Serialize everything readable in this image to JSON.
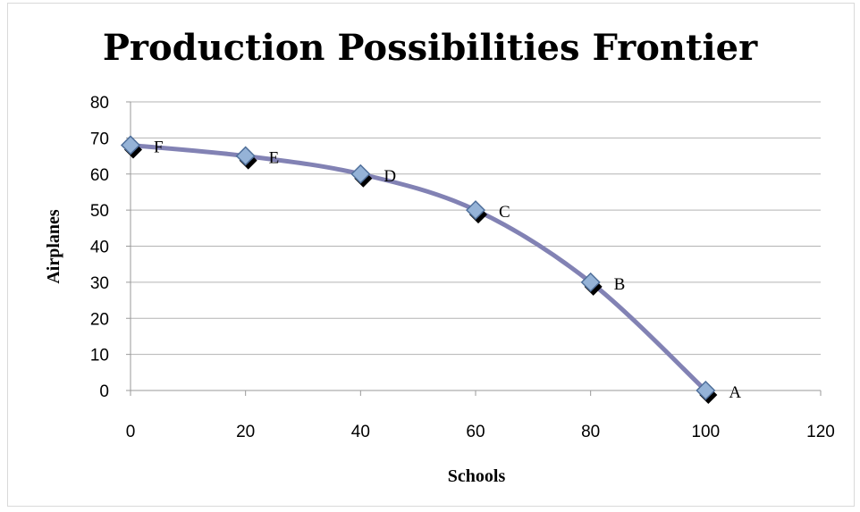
{
  "chart_data": {
    "type": "line",
    "title": "Production Possibilities Frontier",
    "xlabel": "Schools",
    "ylabel": "Airplanes",
    "xlim": [
      0,
      120
    ],
    "ylim": [
      0,
      80
    ],
    "xticks": [
      0,
      20,
      40,
      60,
      80,
      100,
      120
    ],
    "yticks": [
      0,
      10,
      20,
      30,
      40,
      50,
      60,
      70,
      80
    ],
    "grid": true,
    "legend": "none",
    "smooth": true,
    "line_color": "#8282b4",
    "marker_color": "#95b3d7",
    "marker_shape": "diamond",
    "series": [
      {
        "points": [
          {
            "x": 0,
            "y": 68,
            "label": "F"
          },
          {
            "x": 20,
            "y": 65,
            "label": "E"
          },
          {
            "x": 40,
            "y": 60,
            "label": "D"
          },
          {
            "x": 60,
            "y": 50,
            "label": "C"
          },
          {
            "x": 80,
            "y": 30,
            "label": "B"
          },
          {
            "x": 100,
            "y": 0,
            "label": "A"
          }
        ]
      }
    ]
  }
}
